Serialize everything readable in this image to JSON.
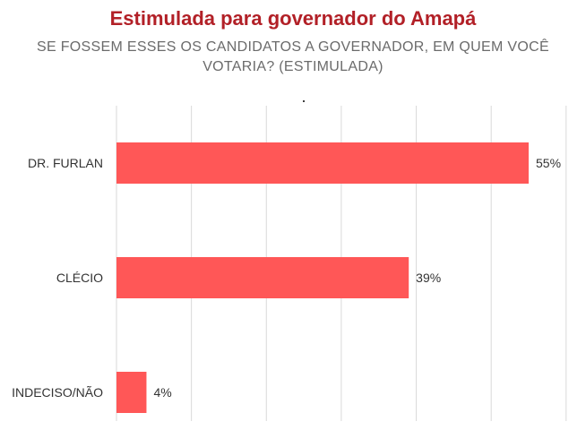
{
  "colors": {
    "title": "#b22027",
    "subtitle": "#6b6b6b",
    "bar": "#ff5757",
    "grid": "#d9d9d9",
    "label": "#333333"
  },
  "chart_data": {
    "type": "bar",
    "orientation": "horizontal",
    "title": "Estimulada para governador do Amapá",
    "subtitle": "SE FOSSEM ESSES OS CANDIDATOS A GOVERNADOR, EM QUEM VOCÊ VOTARIA? (ESTIMULADA)",
    "categories": [
      "DR. FURLAN",
      "CLÉCIO",
      "INDECISO/NÃO"
    ],
    "values": [
      55,
      39,
      4
    ],
    "value_labels": [
      "55%",
      "39%",
      "4%"
    ],
    "xlim": [
      0,
      60
    ],
    "grid": true,
    "legend": "none"
  }
}
